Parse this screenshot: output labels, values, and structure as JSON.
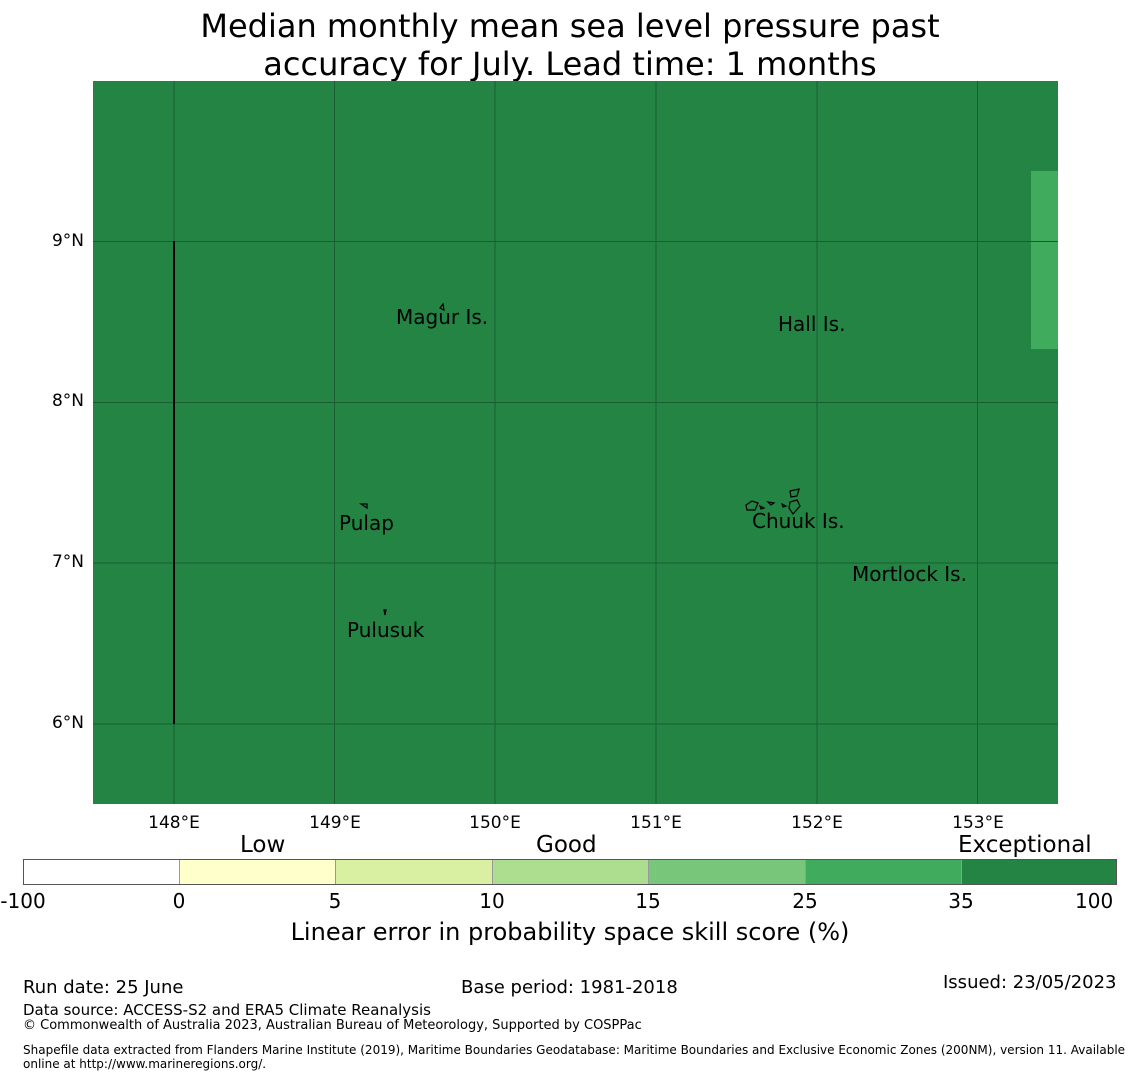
{
  "title": {
    "line1": "Median monthly mean sea level pressure past",
    "line2": "accuracy for July. Lead time: 1 months"
  },
  "map": {
    "fill_color": "#238443",
    "patch_color": "#41ab5d",
    "gridline_color": "#1a5e30",
    "lat_labels": [
      "9°N",
      "8°N",
      "7°N",
      "6°N"
    ],
    "lon_labels": [
      "148°E",
      "149°E",
      "150°E",
      "151°E",
      "152°E",
      "153°E"
    ],
    "places": {
      "magur": "Magur Is.",
      "hall": "Hall Is.",
      "pulap": "Pulap",
      "chuuk": "Chuuk Is.",
      "mortlock": "Mortlock Is.",
      "pulusuk": "Pulusuk"
    }
  },
  "legend": {
    "categories": {
      "low": "Low",
      "good": "Good",
      "exceptional": "Exceptional"
    },
    "ticks": [
      "-100",
      "0",
      "5",
      "10",
      "15",
      "25",
      "35",
      "100"
    ],
    "colors": [
      "#ffffff",
      "#ffffcc",
      "#d9f0a3",
      "#addd8e",
      "#78c679",
      "#41ab5d",
      "#238443"
    ],
    "label": "Linear error in probability space skill score (%)"
  },
  "footer": {
    "run_date": "Run date: 25 June",
    "base_period": "Base period: 1981-2018",
    "issued": "Issued: 23/05/2023",
    "data_source": "Data source: ACCESS-S2 and ERA5 Climate Reanalysis",
    "copyright": "© Commonwealth of Australia 2023, Australian Bureau of Meteorology, Supported by COSPPac",
    "shapefile_line1": "Shapefile data extracted from Flanders Marine Institute (2019), Maritime Boundaries Geodatabase: Maritime Boundaries and Exclusive Economic Zones (200NM), version 11. Available",
    "shapefile_line2": "online at http://www.marineregions.org/."
  }
}
